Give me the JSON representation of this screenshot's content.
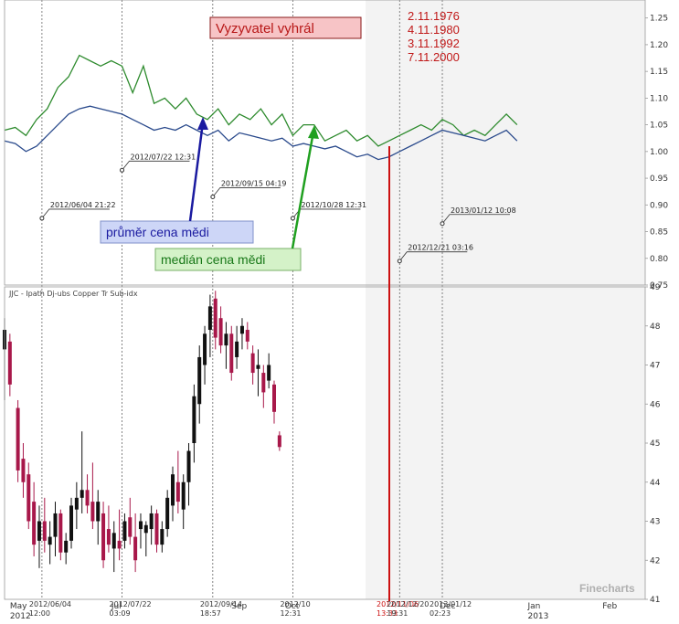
{
  "chart_data": [
    {
      "type": "line",
      "ylim": [
        0.75,
        1.27
      ],
      "y_ticks": [
        "1.25",
        "1.20",
        "1.15",
        "1.10",
        "1.05",
        "1.00",
        "0.95",
        "0.90",
        "0.85",
        "0.80",
        "0.75"
      ],
      "y_tick_values": [
        1.25,
        1.2,
        1.15,
        1.1,
        1.05,
        1.0,
        0.95,
        0.9,
        0.85,
        0.8,
        0.75
      ],
      "colors": {
        "median": "#2e8b2e",
        "average": "#2a4a8c",
        "markers": "#333333"
      },
      "series": [
        {
          "key": "median",
          "x": [
            0,
            4,
            8,
            12,
            16,
            20,
            24,
            28,
            32,
            36,
            40,
            44,
            48,
            52,
            56,
            60,
            64,
            68,
            72,
            76,
            80,
            84,
            88,
            92,
            96,
            100,
            104,
            108,
            112,
            116,
            120,
            124,
            128,
            132,
            136,
            140,
            144,
            148,
            152,
            156,
            160,
            164,
            168,
            172,
            176,
            180,
            184,
            188,
            192
          ],
          "values": [
            1.04,
            1.045,
            1.03,
            1.06,
            1.08,
            1.12,
            1.14,
            1.18,
            1.17,
            1.16,
            1.17,
            1.16,
            1.11,
            1.16,
            1.09,
            1.1,
            1.08,
            1.1,
            1.07,
            1.06,
            1.08,
            1.05,
            1.07,
            1.06,
            1.08,
            1.05,
            1.07,
            1.03,
            1.05,
            1.05,
            1.02,
            1.03,
            1.04,
            1.02,
            1.03,
            1.01,
            1.02,
            1.03,
            1.04,
            1.05,
            1.04,
            1.06,
            1.05,
            1.03,
            1.04,
            1.03,
            1.05,
            1.07,
            1.05
          ]
        },
        {
          "key": "average",
          "x": [
            0,
            4,
            8,
            12,
            16,
            20,
            24,
            28,
            32,
            36,
            40,
            44,
            48,
            52,
            56,
            60,
            64,
            68,
            72,
            76,
            80,
            84,
            88,
            92,
            96,
            100,
            104,
            108,
            112,
            116,
            120,
            124,
            128,
            132,
            136,
            140,
            144,
            148,
            152,
            156,
            160,
            164,
            168,
            172,
            176,
            180,
            184,
            188,
            192
          ],
          "values": [
            1.02,
            1.015,
            1.0,
            1.01,
            1.03,
            1.05,
            1.07,
            1.08,
            1.085,
            1.08,
            1.075,
            1.07,
            1.06,
            1.05,
            1.04,
            1.045,
            1.04,
            1.05,
            1.04,
            1.03,
            1.04,
            1.02,
            1.035,
            1.03,
            1.025,
            1.02,
            1.025,
            1.01,
            1.015,
            1.01,
            1.005,
            1.01,
            1.0,
            0.99,
            0.995,
            0.985,
            0.99,
            1.0,
            1.01,
            1.02,
            1.03,
            1.04,
            1.035,
            1.03,
            1.025,
            1.02,
            1.03,
            1.04,
            1.02
          ]
        }
      ],
      "markers": [
        {
          "label": "2012/06/04 21:22",
          "x": 14,
          "y": 0.875
        },
        {
          "label": "2012/07/22 12:31",
          "x": 44,
          "y": 0.965
        },
        {
          "label": "2012/09/15 04:19",
          "x": 78,
          "y": 0.915
        },
        {
          "label": "2012/10/28 12:31",
          "x": 108,
          "y": 0.875
        },
        {
          "label": "2012/12/21 03:16",
          "x": 148,
          "y": 0.795
        },
        {
          "label": "2013/01/12 10:08",
          "x": 164,
          "y": 0.865
        }
      ],
      "annotations": {
        "winner": "Vyzyvatel vyhrál",
        "average_label": "průměr cena mědi",
        "median_label": "medián cena mědi",
        "dates": [
          "2.11.1976",
          "4.11.1980",
          "3.11.1992",
          "7.11.2000"
        ]
      }
    },
    {
      "type": "candlestick",
      "title": "JJC - Ipath Dj-ubs Copper Tr Sub-idx",
      "ylim": [
        41,
        49
      ],
      "y_ticks": [
        "49",
        "48",
        "47",
        "46",
        "45",
        "44",
        "43",
        "42",
        "41"
      ],
      "y_tick_values": [
        49,
        48,
        47,
        46,
        45,
        44,
        43,
        42,
        41
      ],
      "colors": {
        "up": "#111111",
        "down": "#a8184a"
      },
      "candles": [
        {
          "i": 0,
          "o": 47.4,
          "h": 48.2,
          "l": 46.1,
          "c": 47.9
        },
        {
          "i": 2,
          "o": 47.6,
          "h": 47.8,
          "l": 46.2,
          "c": 46.5
        },
        {
          "i": 5,
          "o": 45.9,
          "h": 46.1,
          "l": 44.0,
          "c": 44.3
        },
        {
          "i": 7,
          "o": 44.6,
          "h": 45.0,
          "l": 43.6,
          "c": 44.0
        },
        {
          "i": 9,
          "o": 44.2,
          "h": 44.5,
          "l": 42.8,
          "c": 43.0
        },
        {
          "i": 11,
          "o": 43.5,
          "h": 44.0,
          "l": 42.1,
          "c": 42.4
        },
        {
          "i": 13,
          "o": 42.5,
          "h": 43.4,
          "l": 41.8,
          "c": 43.0
        },
        {
          "i": 15,
          "o": 43.0,
          "h": 43.6,
          "l": 42.2,
          "c": 42.5
        },
        {
          "i": 17,
          "o": 42.4,
          "h": 43.0,
          "l": 41.9,
          "c": 42.6
        },
        {
          "i": 19,
          "o": 42.6,
          "h": 43.5,
          "l": 42.1,
          "c": 43.2
        },
        {
          "i": 21,
          "o": 43.2,
          "h": 43.3,
          "l": 42.0,
          "c": 42.2
        },
        {
          "i": 23,
          "o": 42.2,
          "h": 42.7,
          "l": 41.9,
          "c": 42.5
        },
        {
          "i": 25,
          "o": 42.5,
          "h": 43.6,
          "l": 42.3,
          "c": 43.4
        },
        {
          "i": 27,
          "o": 43.3,
          "h": 44.0,
          "l": 42.8,
          "c": 43.6
        },
        {
          "i": 29,
          "o": 43.6,
          "h": 45.3,
          "l": 43.2,
          "c": 43.8
        },
        {
          "i": 31,
          "o": 43.8,
          "h": 44.2,
          "l": 43.2,
          "c": 43.4
        },
        {
          "i": 33,
          "o": 43.5,
          "h": 44.5,
          "l": 42.8,
          "c": 43.0
        },
        {
          "i": 35,
          "o": 43.0,
          "h": 43.8,
          "l": 42.4,
          "c": 43.5
        },
        {
          "i": 37,
          "o": 43.2,
          "h": 43.5,
          "l": 41.8,
          "c": 42.0
        },
        {
          "i": 39,
          "o": 42.8,
          "h": 43.4,
          "l": 42.2,
          "c": 42.4
        },
        {
          "i": 41,
          "o": 42.3,
          "h": 43.0,
          "l": 41.7,
          "c": 42.7
        },
        {
          "i": 43,
          "o": 42.5,
          "h": 43.3,
          "l": 42.0,
          "c": 42.3
        },
        {
          "i": 45,
          "o": 42.5,
          "h": 43.2,
          "l": 42.3,
          "c": 43.0
        },
        {
          "i": 47,
          "o": 43.1,
          "h": 43.6,
          "l": 42.4,
          "c": 42.6
        },
        {
          "i": 49,
          "o": 42.6,
          "h": 43.2,
          "l": 41.7,
          "c": 42.0
        },
        {
          "i": 51,
          "o": 42.8,
          "h": 43.2,
          "l": 42.3,
          "c": 43.0
        },
        {
          "i": 53,
          "o": 42.7,
          "h": 43.0,
          "l": 42.1,
          "c": 42.9
        },
        {
          "i": 55,
          "o": 42.8,
          "h": 43.4,
          "l": 42.4,
          "c": 43.2
        },
        {
          "i": 57,
          "o": 43.2,
          "h": 43.3,
          "l": 42.2,
          "c": 42.4
        },
        {
          "i": 59,
          "o": 42.4,
          "h": 43.0,
          "l": 42.2,
          "c": 42.8
        },
        {
          "i": 61,
          "o": 42.8,
          "h": 43.8,
          "l": 42.6,
          "c": 43.6
        },
        {
          "i": 63,
          "o": 43.4,
          "h": 44.4,
          "l": 43.0,
          "c": 44.2
        },
        {
          "i": 65,
          "o": 44.0,
          "h": 44.8,
          "l": 43.2,
          "c": 43.5
        },
        {
          "i": 67,
          "o": 43.3,
          "h": 44.2,
          "l": 42.8,
          "c": 44.0
        },
        {
          "i": 69,
          "o": 44.0,
          "h": 45.0,
          "l": 43.4,
          "c": 44.8
        },
        {
          "i": 71,
          "o": 45.0,
          "h": 46.5,
          "l": 44.5,
          "c": 46.2
        },
        {
          "i": 73,
          "o": 46.0,
          "h": 47.5,
          "l": 45.5,
          "c": 47.2
        },
        {
          "i": 75,
          "o": 47.0,
          "h": 48.0,
          "l": 46.5,
          "c": 47.8
        },
        {
          "i": 77,
          "o": 47.9,
          "h": 48.8,
          "l": 47.2,
          "c": 48.5
        },
        {
          "i": 79,
          "o": 48.7,
          "h": 48.9,
          "l": 47.4,
          "c": 47.7
        },
        {
          "i": 81,
          "o": 48.2,
          "h": 48.5,
          "l": 47.3,
          "c": 47.5
        },
        {
          "i": 83,
          "o": 47.5,
          "h": 48.1,
          "l": 46.9,
          "c": 47.8
        },
        {
          "i": 85,
          "o": 47.8,
          "h": 48.0,
          "l": 46.6,
          "c": 46.8
        },
        {
          "i": 87,
          "o": 47.2,
          "h": 48.0,
          "l": 46.9,
          "c": 47.6
        },
        {
          "i": 89,
          "o": 47.8,
          "h": 48.2,
          "l": 47.4,
          "c": 48.0
        },
        {
          "i": 91,
          "o": 47.9,
          "h": 48.1,
          "l": 47.4,
          "c": 47.6
        },
        {
          "i": 93,
          "o": 47.3,
          "h": 47.5,
          "l": 46.5,
          "c": 46.8
        },
        {
          "i": 95,
          "o": 46.9,
          "h": 47.4,
          "l": 46.2,
          "c": 47.0
        },
        {
          "i": 97,
          "o": 46.8,
          "h": 47.0,
          "l": 45.9,
          "c": 46.3
        },
        {
          "i": 99,
          "o": 46.6,
          "h": 47.3,
          "l": 46.4,
          "c": 47.0
        },
        {
          "i": 101,
          "o": 46.5,
          "h": 46.6,
          "l": 45.5,
          "c": 45.8
        },
        {
          "i": 103,
          "o": 45.2,
          "h": 45.3,
          "l": 44.8,
          "c": 44.9
        }
      ]
    }
  ],
  "x_axis": {
    "months": [
      {
        "x": 2,
        "lines": [
          "May",
          "2012"
        ]
      },
      {
        "x": 40,
        "lines": [
          "Jul"
        ]
      },
      {
        "x": 85,
        "lines": [
          "Sep"
        ]
      },
      {
        "x": 105,
        "lines": [
          "Oct"
        ]
      },
      {
        "x": 163,
        "lines": [
          "Dec"
        ]
      },
      {
        "x": 196,
        "lines": [
          "Jan",
          "2013"
        ]
      },
      {
        "x": 224,
        "lines": [
          "Feb"
        ]
      }
    ],
    "date_labels": [
      {
        "x": 14,
        "lines": [
          "2012/06/04",
          "12:00"
        ]
      },
      {
        "x": 44,
        "lines": [
          "2012/07/22",
          "03:09"
        ]
      },
      {
        "x": 78,
        "lines": [
          "2012/09/14",
          "18:57"
        ]
      },
      {
        "x": 108,
        "lines": [
          "2012/10",
          "12:31"
        ]
      },
      {
        "x": 148,
        "lines": [
          "2012/12/20",
          "19:31"
        ]
      },
      {
        "x": 164,
        "lines": [
          "2013/01/12",
          "02:23"
        ]
      }
    ],
    "red_date_lines": [
      "2012/11/06",
      "13:33"
    ]
  },
  "watermark": "Finecharts"
}
